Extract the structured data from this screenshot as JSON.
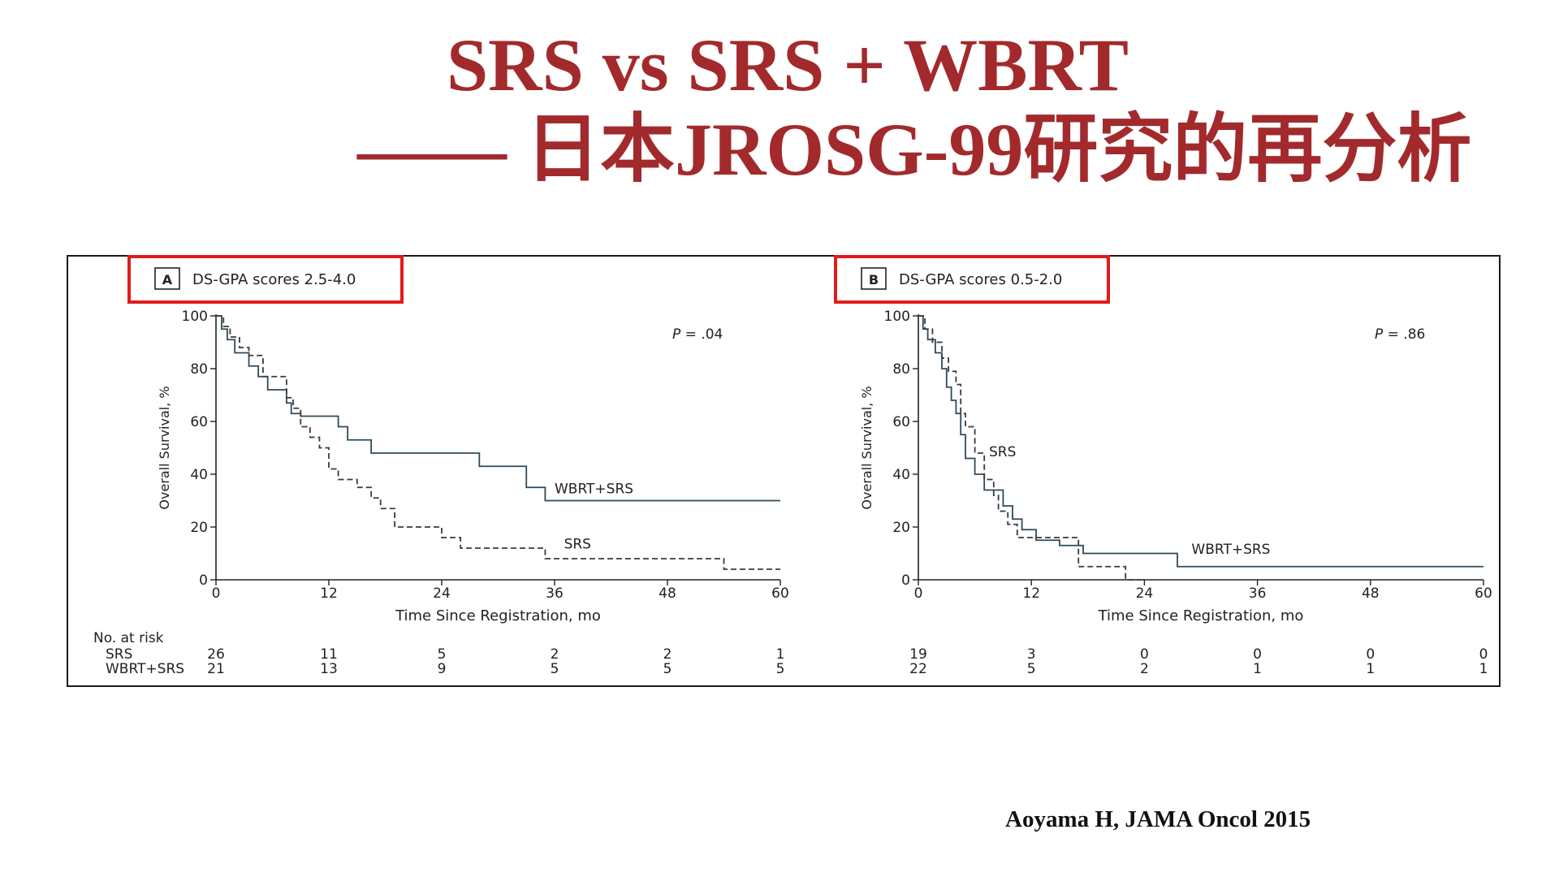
{
  "slide": {
    "title_line1": "SRS vs SRS + WBRT",
    "title_line2": "—— 日本JROSG-99研究的再分析",
    "citation": "Aoyama H, JAMA Oncol 2015",
    "title_color": "#a32a2c",
    "highlight_color": "#e01b1b"
  },
  "chart_data": [
    {
      "type": "line",
      "panel_label": "A",
      "title": "DS-GPA scores 2.5-4.0",
      "xlabel": "Time Since Registration, mo",
      "ylabel": "Overall Survival, %",
      "xlim": [
        0,
        60
      ],
      "ylim": [
        0,
        100
      ],
      "x_ticks": [
        "0",
        "12",
        "24",
        "36",
        "48",
        "60"
      ],
      "y_ticks": [
        "0",
        "20",
        "40",
        "60",
        "80",
        "100"
      ],
      "p_label": "P",
      "p_value": "= .04",
      "series": [
        {
          "name": "WBRT+SRS",
          "style": "solid",
          "x": [
            0,
            0.6,
            1.2,
            2.0,
            3.5,
            4.5,
            5.5,
            7.5,
            8.0,
            9.0,
            12.0,
            13.0,
            14.0,
            16.5,
            23.0,
            28.0,
            33.0,
            35.0,
            60.0
          ],
          "y": [
            100,
            95,
            91,
            86,
            81,
            77,
            72,
            67,
            63,
            62,
            62,
            58,
            53,
            48,
            48,
            43,
            35,
            30,
            30
          ]
        },
        {
          "name": "SRS",
          "style": "dashed",
          "x": [
            0,
            0.8,
            1.5,
            2.5,
            3.5,
            5.0,
            7.5,
            8.2,
            9.0,
            10.0,
            11.0,
            12.0,
            13.0,
            15.0,
            16.5,
            17.5,
            19.0,
            24.0,
            26.0,
            35.0,
            48.0,
            54.0,
            60.0
          ],
          "y": [
            100,
            96,
            92,
            88,
            85,
            77,
            69,
            65,
            58,
            54,
            50,
            42,
            38,
            35,
            31,
            27,
            20,
            16,
            12,
            8,
            8,
            4,
            4
          ]
        }
      ],
      "annotations": [
        {
          "text": "WBRT+SRS",
          "x": 36,
          "y": 31
        },
        {
          "text": "SRS",
          "x": 37,
          "y": 10
        }
      ],
      "at_risk": {
        "label": "No. at risk",
        "rows": [
          {
            "name": "SRS",
            "values": [
              "26",
              "11",
              "5",
              "2",
              "2",
              "1"
            ]
          },
          {
            "name": "WBRT+SRS",
            "values": [
              "21",
              "13",
              "9",
              "5",
              "5",
              "5"
            ]
          }
        ]
      }
    },
    {
      "type": "line",
      "panel_label": "B",
      "title": "DS-GPA scores 0.5-2.0",
      "xlabel": "Time Since Registration, mo",
      "ylabel": "Overall Survival, %",
      "xlim": [
        0,
        60
      ],
      "ylim": [
        0,
        100
      ],
      "x_ticks": [
        "0",
        "12",
        "24",
        "36",
        "48",
        "60"
      ],
      "y_ticks": [
        "0",
        "20",
        "40",
        "60",
        "80",
        "100"
      ],
      "p_label": "P",
      "p_value": "= .86",
      "series": [
        {
          "name": "WBRT+SRS",
          "style": "solid",
          "x": [
            0,
            0.5,
            1.0,
            1.8,
            2.5,
            3.0,
            3.5,
            4.0,
            4.5,
            5.0,
            6.0,
            7.0,
            9.0,
            10.0,
            11.0,
            12.5,
            15.0,
            17.5,
            25.0,
            27.5,
            60.0
          ],
          "y": [
            100,
            95,
            91,
            86,
            80,
            73,
            68,
            63,
            55,
            46,
            40,
            34,
            28,
            23,
            19,
            15,
            13,
            10,
            10,
            5,
            5
          ]
        },
        {
          "name": "SRS",
          "style": "dashed",
          "x": [
            0,
            0.7,
            1.5,
            2.5,
            3.2,
            4.0,
            4.5,
            5.0,
            6.0,
            7.0,
            8.0,
            8.5,
            9.5,
            10.5,
            11.5,
            14.0,
            17.0,
            22.0,
            24.0
          ],
          "y": [
            100,
            95,
            90,
            84,
            79,
            74,
            63,
            58,
            48,
            38,
            32,
            26,
            21,
            16,
            16,
            16,
            5,
            0,
            0
          ]
        }
      ],
      "annotations": [
        {
          "text": "SRS",
          "x": 7.5,
          "y": 45
        },
        {
          "text": "WBRT+SRS",
          "x": 29,
          "y": 8
        }
      ],
      "at_risk": {
        "label": "",
        "rows": [
          {
            "name": "",
            "values": [
              "19",
              "3",
              "0",
              "0",
              "0",
              "0"
            ]
          },
          {
            "name": "",
            "values": [
              "22",
              "5",
              "2",
              "1",
              "1",
              "1"
            ]
          }
        ]
      }
    }
  ]
}
